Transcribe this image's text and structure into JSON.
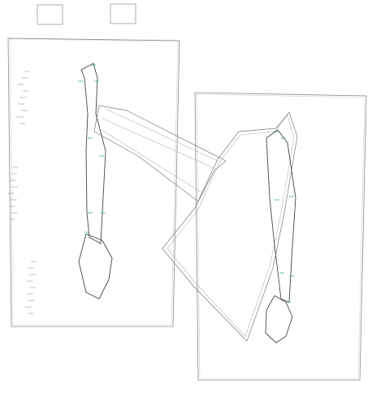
{
  "colors": {
    "background": "#ffffff",
    "sheet_border": "#8a8a8a",
    "outline": "#444444",
    "guide": "#b5b5b5",
    "tick_marks": "#3aa59a"
  },
  "icons": {
    "thumbnail_left": "empty-frame-icon",
    "thumbnail_right": "empty-frame-icon"
  }
}
